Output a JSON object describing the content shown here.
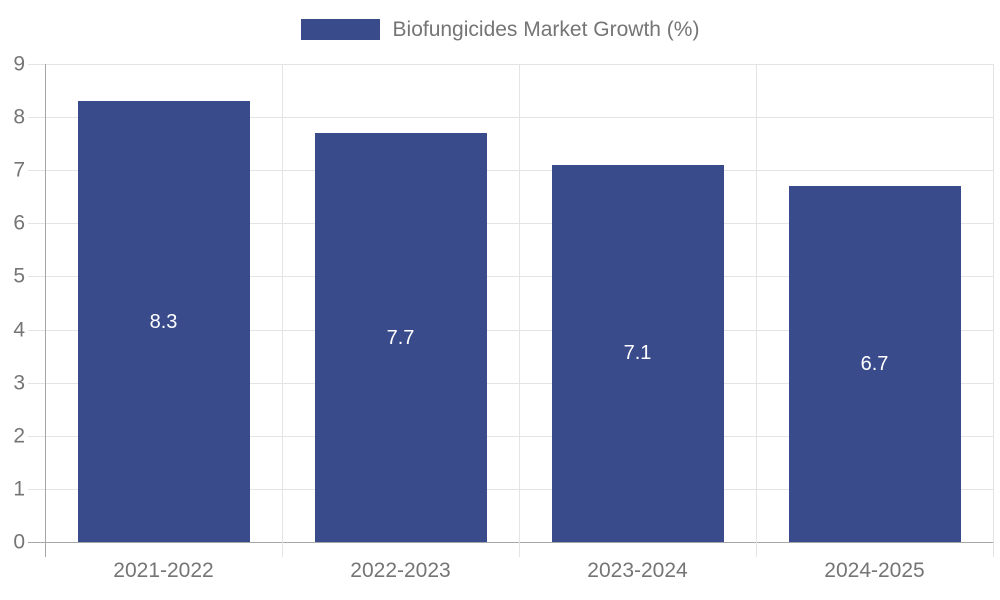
{
  "chart_data": {
    "type": "bar",
    "title": "Biofungicides Market Growth (%)",
    "legend": {
      "label": "Biofungicides Market Growth (%)",
      "position": "top"
    },
    "categories": [
      "2021-2022",
      "2022-2023",
      "2023-2024",
      "2024-2025"
    ],
    "values": [
      8.3,
      7.7,
      7.1,
      6.7
    ],
    "value_labels": [
      "8.3",
      "7.7",
      "7.1",
      "6.7"
    ],
    "xlabel": "",
    "ylabel": "",
    "ylim": [
      0,
      9
    ],
    "yticks": [
      0,
      1,
      2,
      3,
      4,
      5,
      6,
      7,
      8,
      9
    ],
    "ytick_labels": [
      "0",
      "1",
      "2",
      "3",
      "4",
      "5",
      "6",
      "7",
      "8",
      "9"
    ],
    "grid": true,
    "legend_position": "top-center",
    "colors": {
      "bar": "#394B8B",
      "grid": "#E4E4E4",
      "axis": "#A6A6A6",
      "tick_label": "#757575",
      "legend_text": "#757575",
      "value_label": "#FFFFFF",
      "background": "#FFFFFF"
    }
  }
}
